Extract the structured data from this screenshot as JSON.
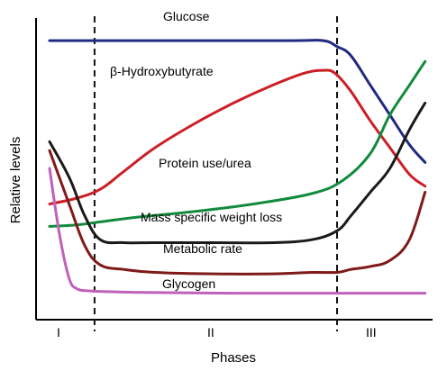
{
  "chart_data": {
    "type": "line",
    "title": "",
    "xlabel": "Phases",
    "ylabel": "Relative levels",
    "xlim": [
      0,
      10
    ],
    "ylim": [
      0,
      10
    ],
    "grid": false,
    "legend": "none",
    "phases": [
      {
        "label": "I",
        "x": 0.5
      },
      {
        "label": "II",
        "x": 4.5
      },
      {
        "label": "III",
        "x": 8.75
      }
    ],
    "phase_boundaries": [
      1.45,
      7.65
    ],
    "series": [
      {
        "name": "Glucose",
        "color": "#1f2a80",
        "x": [
          0.3,
          2,
          4,
          6.5,
          7.3,
          7.65,
          8,
          8.5,
          9,
          9.5,
          9.9
        ],
        "y": [
          9.3,
          9.3,
          9.3,
          9.3,
          9.3,
          9.1,
          8.8,
          7.8,
          6.8,
          5.8,
          5.2
        ]
      },
      {
        "name": "β-Hydroxybutyrate",
        "color": "#cc1f26",
        "x": [
          0.3,
          1,
          1.6,
          2.2,
          3,
          4,
          5,
          6,
          6.8,
          7.3,
          7.6,
          8,
          8.5,
          9,
          9.5,
          9.9
        ],
        "y": [
          3.8,
          4.0,
          4.3,
          4.9,
          5.7,
          6.5,
          7.2,
          7.8,
          8.2,
          8.3,
          8.2,
          7.6,
          6.6,
          5.7,
          4.8,
          4.4
        ]
      },
      {
        "name": "Protein use/urea",
        "color": "#138a3e",
        "x": [
          0.3,
          1,
          1.6,
          2.5,
          4,
          5.5,
          7,
          7.8,
          8.5,
          9,
          9.5,
          9.9
        ],
        "y": [
          3.05,
          3.1,
          3.2,
          3.35,
          3.55,
          3.8,
          4.15,
          4.6,
          5.5,
          6.8,
          7.8,
          8.6
        ]
      },
      {
        "name": "Mass specific weight loss",
        "color": "#1a1a1a",
        "x": [
          0.3,
          0.8,
          1.2,
          1.6,
          2.2,
          3,
          4.5,
          6,
          7,
          7.65,
          8,
          8.5,
          9,
          9.5,
          9.9
        ],
        "y": [
          5.9,
          4.7,
          3.4,
          2.6,
          2.5,
          2.5,
          2.5,
          2.5,
          2.6,
          2.9,
          3.4,
          4.2,
          5.0,
          6.3,
          7.2
        ]
      },
      {
        "name": "Metabolic rate",
        "color": "#801a1a",
        "x": [
          0.3,
          0.8,
          1.2,
          1.6,
          2.2,
          3,
          4.5,
          6,
          7,
          7.65,
          8,
          8.5,
          9,
          9.5,
          9.9
        ],
        "y": [
          5.6,
          3.8,
          2.4,
          1.75,
          1.6,
          1.5,
          1.45,
          1.45,
          1.5,
          1.5,
          1.6,
          1.7,
          1.9,
          2.6,
          4.2
        ]
      },
      {
        "name": "Glycogen",
        "color": "#c060b8",
        "x": [
          0.3,
          0.55,
          0.8,
          1.0,
          1.3,
          1.8,
          3,
          5,
          7,
          9,
          9.9
        ],
        "y": [
          5.0,
          2.8,
          1.3,
          0.95,
          0.88,
          0.85,
          0.82,
          0.8,
          0.8,
          0.8,
          0.8
        ]
      }
    ]
  }
}
